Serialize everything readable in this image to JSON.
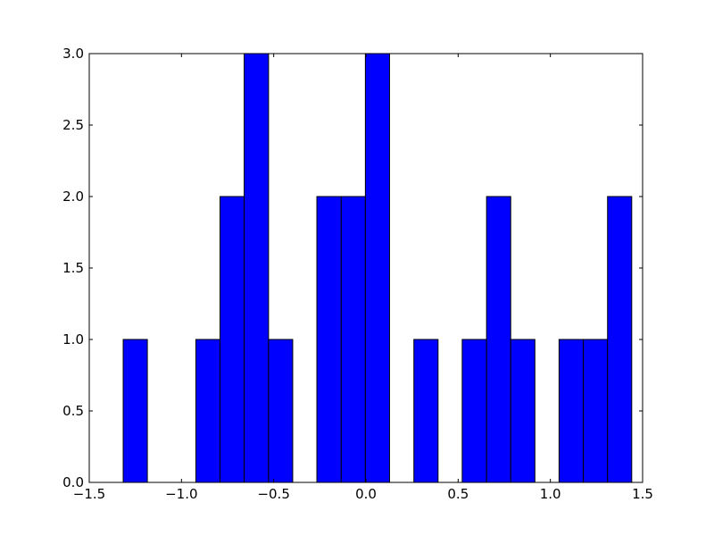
{
  "chart_data": {
    "type": "histogram",
    "bins": [
      -1.316,
      -1.185,
      -1.053,
      -0.922,
      -0.791,
      -0.66,
      -0.528,
      -0.397,
      -0.266,
      -0.134,
      -0.003,
      0.128,
      0.26,
      0.391,
      0.522,
      0.654,
      0.785,
      0.916,
      1.047,
      1.179,
      1.31,
      1.441
    ],
    "values": [
      1,
      0,
      0,
      1,
      2,
      3,
      1,
      0,
      2,
      2,
      3,
      0,
      1,
      0,
      1,
      2,
      1,
      0,
      1,
      1,
      2
    ],
    "color": "#0000ff",
    "edgecolor": "#000000",
    "xlim": [
      -1.5,
      1.5
    ],
    "xticks": [
      {
        "value": -1.5,
        "label": "−1.5"
      },
      {
        "value": -1.0,
        "label": "−1.0"
      },
      {
        "value": -0.5,
        "label": "−0.5"
      },
      {
        "value": 0.0,
        "label": "0.0"
      },
      {
        "value": 0.5,
        "label": "0.5"
      },
      {
        "value": 1.0,
        "label": "1.0"
      },
      {
        "value": 1.5,
        "label": "1.5"
      }
    ],
    "ylim": [
      0,
      3
    ],
    "yticks": [
      {
        "value": 0,
        "label": "0.0"
      },
      {
        "value": 0.5,
        "label": "0.5"
      },
      {
        "value": 1.0,
        "label": "1.0"
      },
      {
        "value": 1.5,
        "label": "1.5"
      },
      {
        "value": 2.0,
        "label": "2.0"
      },
      {
        "value": 2.5,
        "label": "2.5"
      },
      {
        "value": 3.0,
        "label": "3.0"
      }
    ],
    "grid": false
  }
}
